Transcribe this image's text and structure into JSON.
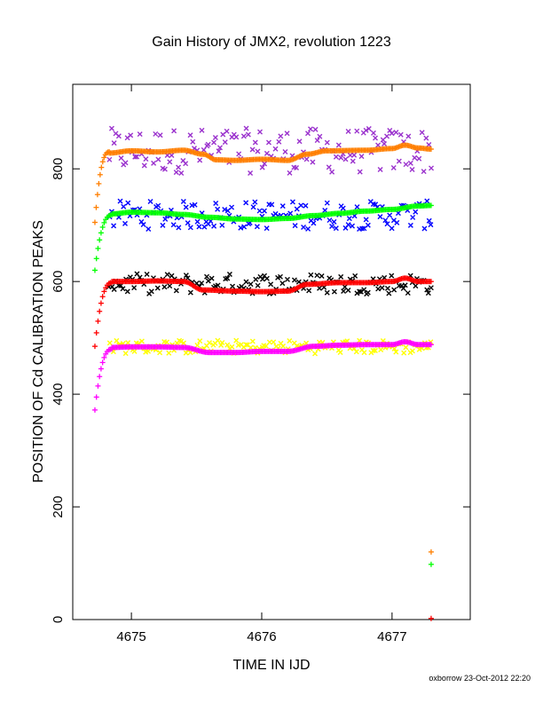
{
  "chart_data": {
    "type": "scatter",
    "title": "Gain History of JMX2, revolution 1223",
    "xlabel": "TIME IN IJD",
    "ylabel": "POSITION OF Cd CALIBRATION PEAKS",
    "xlim": [
      4674.55,
      4677.6
    ],
    "ylim": [
      0,
      950
    ],
    "x_ticks": [
      4675,
      4676,
      4677
    ],
    "y_ticks": [
      0,
      200,
      400,
      600,
      800
    ],
    "grid": false,
    "footer": "oxborrow 23-Oct-2012 22:20",
    "colors": {
      "orange": "#ff7f00",
      "purple": "#9a32cd",
      "green": "#00ff00",
      "blue": "#0000ff",
      "red": "#ff0000",
      "black": "#000000",
      "magenta": "#ff00ff",
      "yellow": "#ffff00"
    },
    "series": [
      {
        "color": "orange",
        "marker": "plus",
        "role": "fit",
        "rise": {
          "start": 705,
          "end": 830
        },
        "x": [
          4674.83,
          4675.0,
          4675.2,
          4675.4,
          4675.55,
          4675.65,
          4675.8,
          4676.0,
          4676.2,
          4676.35,
          4676.5,
          4676.8,
          4677.0,
          4677.1,
          4677.2,
          4677.3
        ],
        "y": [
          828,
          832,
          830,
          833,
          826,
          816,
          815,
          817,
          815,
          826,
          832,
          833,
          836,
          842,
          837,
          835
        ]
      },
      {
        "color": "purple",
        "marker": "cross",
        "role": "measured",
        "x_start": 4674.83,
        "x_end": 4677.3,
        "y_center": 832,
        "scatter": 40,
        "count": 140
      },
      {
        "color": "green",
        "marker": "plus",
        "role": "fit",
        "rise": {
          "start": 620,
          "end": 718
        },
        "x": [
          4674.85,
          4675.0,
          4675.2,
          4675.4,
          4675.6,
          4675.8,
          4676.0,
          4676.2,
          4676.4,
          4676.6,
          4676.8,
          4677.0,
          4677.2,
          4677.3
        ],
        "y": [
          720,
          723,
          722,
          719,
          714,
          711,
          710,
          712,
          717,
          721,
          725,
          728,
          734,
          735
        ]
      },
      {
        "color": "blue",
        "marker": "cross",
        "role": "measured",
        "x_start": 4674.83,
        "x_end": 4677.3,
        "y_center": 718,
        "scatter": 25,
        "count": 140
      },
      {
        "color": "red",
        "marker": "plus",
        "role": "fit",
        "rise": {
          "start": 485,
          "end": 598
        },
        "x": [
          4674.85,
          4675.0,
          4675.2,
          4675.4,
          4675.55,
          4675.8,
          4676.0,
          4676.2,
          4676.35,
          4676.6,
          4676.8,
          4677.0,
          4677.1,
          4677.2,
          4677.3
        ],
        "y": [
          600,
          600,
          601,
          600,
          585,
          583,
          582,
          583,
          595,
          598,
          598,
          600,
          606,
          600,
          600
        ]
      },
      {
        "color": "black",
        "marker": "cross",
        "role": "measured",
        "x_start": 4674.83,
        "x_end": 4677.3,
        "y_center": 596,
        "scatter": 18,
        "count": 140
      },
      {
        "color": "magenta",
        "marker": "plus",
        "role": "fit",
        "rise": {
          "start": 372,
          "end": 480
        },
        "x": [
          4674.85,
          4675.0,
          4675.2,
          4675.4,
          4675.6,
          4675.8,
          4676.0,
          4676.2,
          4676.4,
          4676.6,
          4676.8,
          4677.0,
          4677.1,
          4677.2,
          4677.3
        ],
        "y": [
          483,
          484,
          484,
          483,
          474,
          474,
          476,
          476,
          485,
          487,
          488,
          488,
          493,
          488,
          488
        ]
      },
      {
        "color": "yellow",
        "marker": "cross",
        "role": "measured",
        "x_start": 4674.83,
        "x_end": 4677.3,
        "y_center": 484,
        "scatter": 12,
        "count": 140
      }
    ],
    "outliers": [
      {
        "color": "orange",
        "x": 4677.3,
        "y": 120
      },
      {
        "color": "green",
        "x": 4677.3,
        "y": 98
      },
      {
        "color": "red",
        "x": 4677.3,
        "y": 2
      }
    ]
  }
}
